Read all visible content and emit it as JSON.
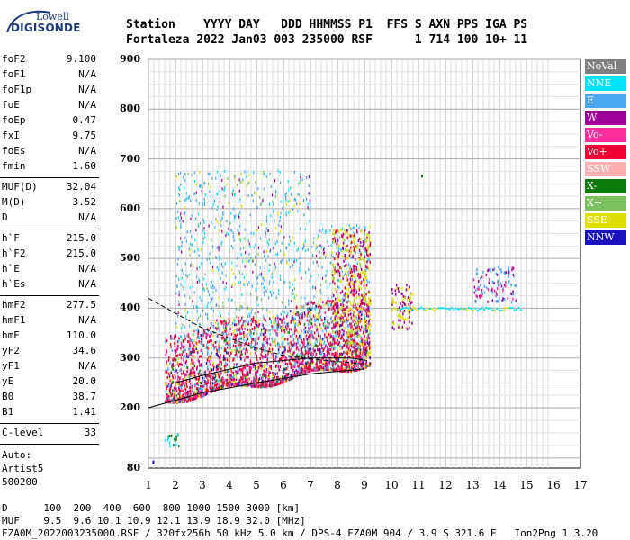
{
  "logo": {
    "top": "Lowell",
    "main": "DIGISONDE"
  },
  "header": {
    "line1": "Station    YYYY DAY   DDD HHMMSS P1  FFS S AXN PPS IGA PS",
    "line2": "Fortaleza 2022 Jan03 003 235000 RSF      1 714 100 10+ 11"
  },
  "params_group1": [
    {
      "name": "foF2",
      "value": "9.100"
    },
    {
      "name": "foF1",
      "value": "N/A"
    },
    {
      "name": "foF1p",
      "value": "N/A"
    },
    {
      "name": "foE",
      "value": "N/A"
    },
    {
      "name": "foEp",
      "value": "0.47"
    },
    {
      "name": "fxI",
      "value": "9.75"
    },
    {
      "name": "foEs",
      "value": "N/A"
    },
    {
      "name": "fmin",
      "value": "1.60"
    }
  ],
  "params_group2": [
    {
      "name": "MUF(D)",
      "value": "32.04"
    },
    {
      "name": "M(D)",
      "value": "3.52"
    },
    {
      "name": "D",
      "value": "N/A"
    }
  ],
  "params_group3": [
    {
      "name": "h`F",
      "value": "215.0"
    },
    {
      "name": "h`F2",
      "value": "215.0"
    },
    {
      "name": "h`E",
      "value": "N/A"
    },
    {
      "name": "h`Es",
      "value": "N/A"
    }
  ],
  "params_group4": [
    {
      "name": "hmF2",
      "value": "277.5"
    },
    {
      "name": "hmF1",
      "value": "N/A"
    },
    {
      "name": "hmE",
      "value": "110.0"
    },
    {
      "name": "yF2",
      "value": "34.6"
    },
    {
      "name": "yF1",
      "value": "N/A"
    },
    {
      "name": "yE",
      "value": "20.0"
    },
    {
      "name": "B0",
      "value": "38.7"
    },
    {
      "name": "B1",
      "value": "1.41"
    }
  ],
  "c_level": {
    "name": "C-level",
    "value": "33"
  },
  "auto": [
    "Auto:",
    "Artist5",
    "500200"
  ],
  "legend": [
    {
      "label": "NoVal",
      "color": "#808080"
    },
    {
      "label": "NNE",
      "color": "#00e0ff"
    },
    {
      "label": "E",
      "color": "#4aa8f0"
    },
    {
      "label": "W",
      "color": "#a0009a"
    },
    {
      "label": "Vo-",
      "color": "#ff2d9a"
    },
    {
      "label": "Vo+",
      "color": "#ee0033"
    },
    {
      "label": "SSW",
      "color": "#ffb0b0"
    },
    {
      "label": "X-",
      "color": "#0a7a0a"
    },
    {
      "label": "X+",
      "color": "#7cc060"
    },
    {
      "label": "SSE",
      "color": "#e0e000"
    },
    {
      "label": "NNW",
      "color": "#1a10c0"
    }
  ],
  "chart_data": {
    "type": "scatter",
    "x_ticks": [
      "1",
      "2",
      "3",
      "4",
      "5",
      "6",
      "7",
      "8",
      "9",
      "10",
      "11",
      "12",
      "13",
      "14",
      "15",
      "16",
      "17"
    ],
    "y_ticks": [
      "900",
      "800",
      "700",
      "600",
      "500",
      "400",
      "300",
      "200",
      "80"
    ],
    "xlim": [
      1,
      17
    ],
    "ylim": [
      80,
      900
    ],
    "grid": true,
    "legend_position": "right"
  },
  "footer": {
    "d_line": "D      100  200  400  600  800 1000 1500 3000 [km]",
    "muf_line": "MUF    9.5  9.6 10.1 10.9 12.1 13.9 18.9 32.0 [MHz]",
    "file_line": "FZA0M_2022003235000.RSF / 320fx256h 50 kHz 5.0 km / DPS-4 FZA0M 904 / 3.9 S 321.6 E   Ion2Png 1.3.20"
  }
}
